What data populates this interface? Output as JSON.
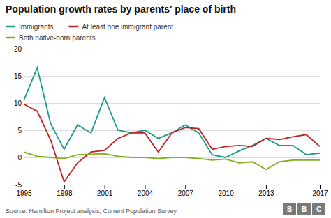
{
  "chart_data": {
    "type": "line",
    "title": "Population growth rates by parents' place of birth",
    "source": "Source: Hamilton Project analysis, Current Population Survey",
    "logo": "BBC",
    "x": [
      1995,
      1996,
      1997,
      1998,
      1999,
      2000,
      2001,
      2002,
      2003,
      2004,
      2005,
      2006,
      2007,
      2008,
      2009,
      2010,
      2011,
      2012,
      2013,
      2014,
      2015,
      2016,
      2017
    ],
    "series": [
      {
        "name": "Immigrants",
        "color": "#1a9b8a",
        "values": [
          10.5,
          16.5,
          6.2,
          1.5,
          6.0,
          4.5,
          11.0,
          5.0,
          4.5,
          5.0,
          3.5,
          4.5,
          6.0,
          4.5,
          0.5,
          0.0,
          1.2,
          2.2,
          3.5,
          2.2,
          2.2,
          0.5,
          0.8
        ]
      },
      {
        "name": "At least one immigrant parent",
        "color": "#bb2222",
        "values": [
          9.8,
          8.5,
          3.2,
          -4.5,
          -1.0,
          1.0,
          1.3,
          3.5,
          4.5,
          4.5,
          1.0,
          4.5,
          5.5,
          5.3,
          1.5,
          2.0,
          2.2,
          2.0,
          3.5,
          3.3,
          3.8,
          4.2,
          2.0
        ]
      },
      {
        "name": "Both native-born parents",
        "color": "#7fb020",
        "values": [
          1.0,
          0.2,
          0.0,
          -0.2,
          0.5,
          0.6,
          0.7,
          0.2,
          0.0,
          0.0,
          -0.2,
          0.0,
          0.0,
          -0.2,
          -0.5,
          -0.3,
          -1.0,
          -0.8,
          -2.2,
          -0.8,
          -0.5,
          -0.5,
          -0.5
        ]
      }
    ],
    "xlim": [
      1995,
      2017
    ],
    "xticks": [
      1995,
      1998,
      2001,
      2004,
      2007,
      2010,
      2013,
      2017
    ],
    "ylim": [
      -5,
      20
    ],
    "yticks": [
      -5,
      0,
      5,
      10,
      15,
      20
    ],
    "grid": true,
    "legend": "top-left"
  }
}
